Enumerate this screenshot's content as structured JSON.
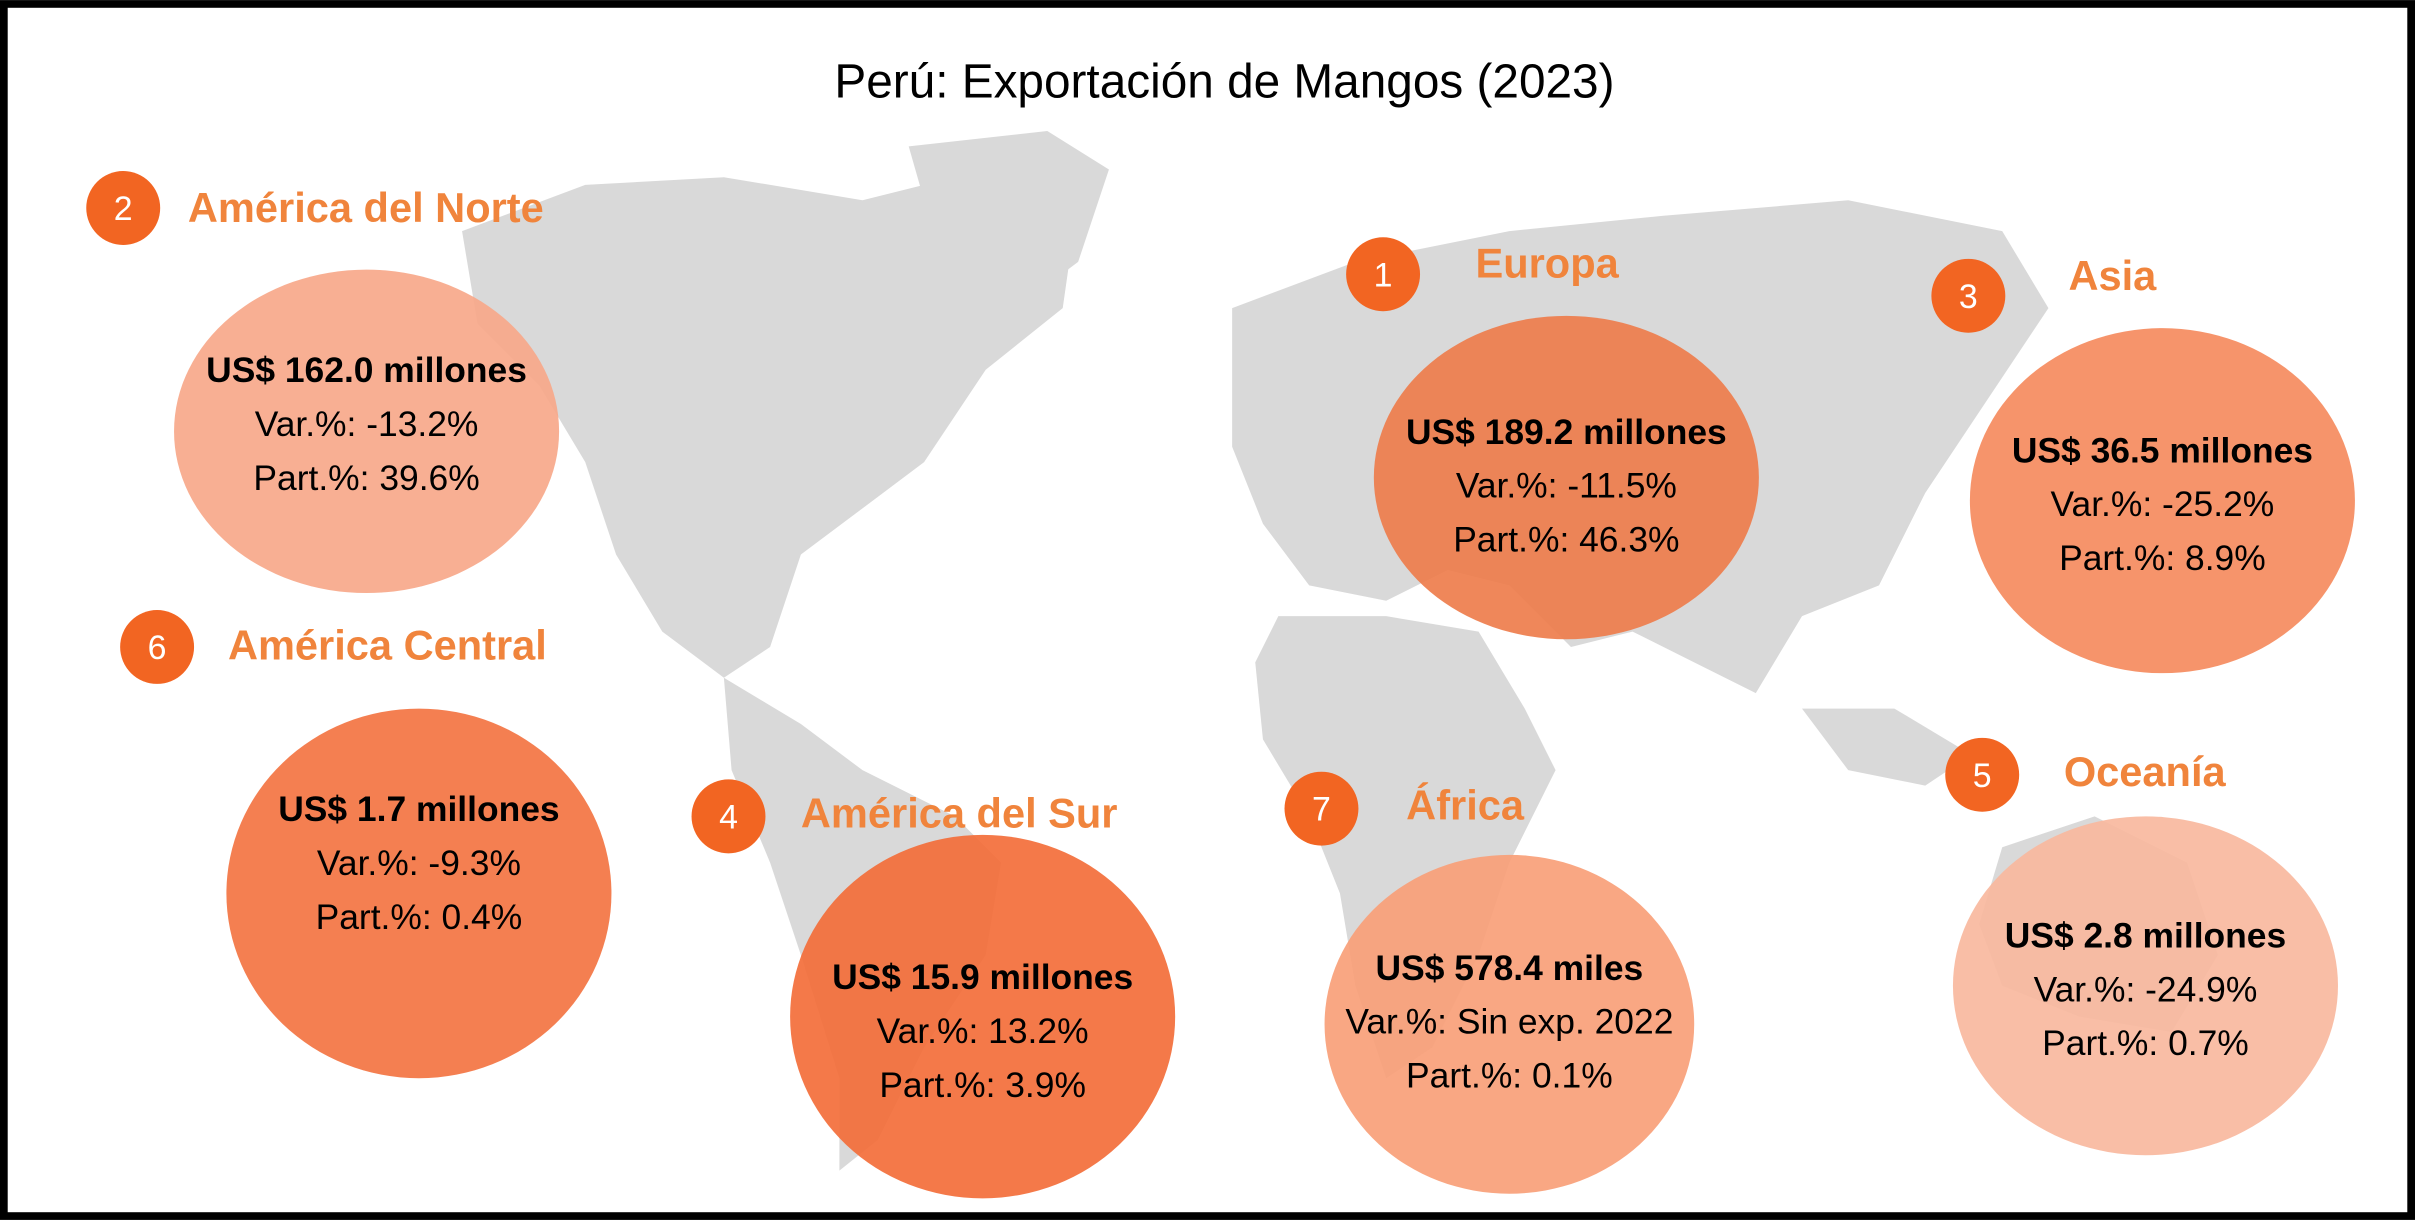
{
  "title": "Perú: Exportación de Mangos (2023)",
  "regions": [
    {
      "rank": "2",
      "name": "América del Norte",
      "value": "US$ 162.0 millones",
      "var": "Var.%: -13.2%",
      "part": "Part.%: 39.6%"
    },
    {
      "rank": "1",
      "name": "Europa",
      "value": "US$ 189.2 millones",
      "var": "Var.%: -11.5%",
      "part": "Part.%: 46.3%"
    },
    {
      "rank": "3",
      "name": "Asia",
      "value": "US$ 36.5 millones",
      "var": "Var.%: -25.2%",
      "part": "Part.%: 8.9%"
    },
    {
      "rank": "6",
      "name": "América Central",
      "value": "US$ 1.7 millones",
      "var": "Var.%: -9.3%",
      "part": "Part.%: 0.4%"
    },
    {
      "rank": "4",
      "name": "América del Sur",
      "value": "US$ 15.9 millones",
      "var": "Var.%: 13.2%",
      "part": "Part.%: 3.9%"
    },
    {
      "rank": "7",
      "name": "África",
      "value": "US$ 578.4 miles",
      "var": "Var.%: Sin exp. 2022",
      "part": "Part.%: 0.1%"
    },
    {
      "rank": "5",
      "name": "Oceanía",
      "value": "US$ 2.8 millones",
      "var": "Var.%: -24.9%",
      "part": "Part.%: 0.7%"
    }
  ]
}
